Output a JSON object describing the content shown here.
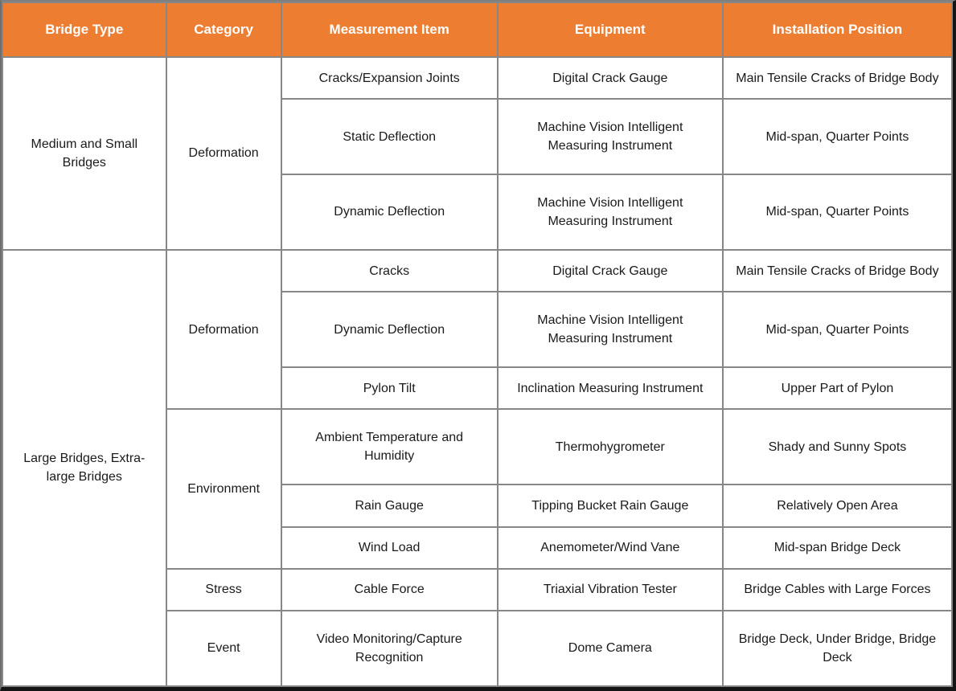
{
  "table": {
    "accent_color": "#ED7D31",
    "header_text_color": "#FFFFFF",
    "inner_border_color": "#878787",
    "outer_edge_color": "#141414",
    "body_text_color": "#1A1A1A",
    "columns": [
      "Bridge Type",
      "Category",
      "Measurement Item",
      "Equipment",
      "Installation Position"
    ],
    "groups": [
      {
        "bridge_type": "Medium and Small Bridges",
        "categories": [
          {
            "name": "Deformation",
            "rows": [
              {
                "item": "Cracks/Expansion Joints",
                "equipment": "Digital Crack Gauge",
                "position": "Main Tensile Cracks of Bridge Body"
              },
              {
                "item": "Static Deflection",
                "equipment": "Machine Vision Intelligent Measuring Instrument",
                "position": "Mid-span, Quarter Points"
              },
              {
                "item": "Dynamic Deflection",
                "equipment": "Machine Vision Intelligent Measuring Instrument",
                "position": "Mid-span, Quarter Points"
              }
            ]
          }
        ]
      },
      {
        "bridge_type": "Large Bridges, Extra-large Bridges",
        "categories": [
          {
            "name": "Deformation",
            "rows": [
              {
                "item": "Cracks",
                "equipment": "Digital Crack Gauge",
                "position": "Main Tensile Cracks of Bridge Body"
              },
              {
                "item": "Dynamic Deflection",
                "equipment": "Machine Vision Intelligent Measuring Instrument",
                "position": "Mid-span, Quarter Points"
              },
              {
                "item": "Pylon Tilt",
                "equipment": "Inclination Measuring Instrument",
                "position": "Upper Part of Pylon"
              }
            ]
          },
          {
            "name": "Environment",
            "rows": [
              {
                "item": "Ambient Temperature and Humidity",
                "equipment": "Thermohygrometer",
                "position": "Shady and Sunny Spots"
              },
              {
                "item": "Rain Gauge",
                "equipment": "Tipping Bucket Rain Gauge",
                "position": "Relatively Open Area"
              },
              {
                "item": "Wind Load",
                "equipment": "Anemometer/Wind Vane",
                "position": "Mid-span Bridge Deck"
              }
            ]
          },
          {
            "name": "Stress",
            "rows": [
              {
                "item": "Cable Force",
                "equipment": "Triaxial Vibration Tester",
                "position": "Bridge Cables with Large Forces"
              }
            ]
          },
          {
            "name": "Event",
            "rows": [
              {
                "item": "Video Monitoring/Capture Recognition",
                "equipment": "Dome Camera",
                "position": "Bridge Deck, Under Bridge, Bridge Deck"
              }
            ]
          }
        ]
      }
    ]
  }
}
